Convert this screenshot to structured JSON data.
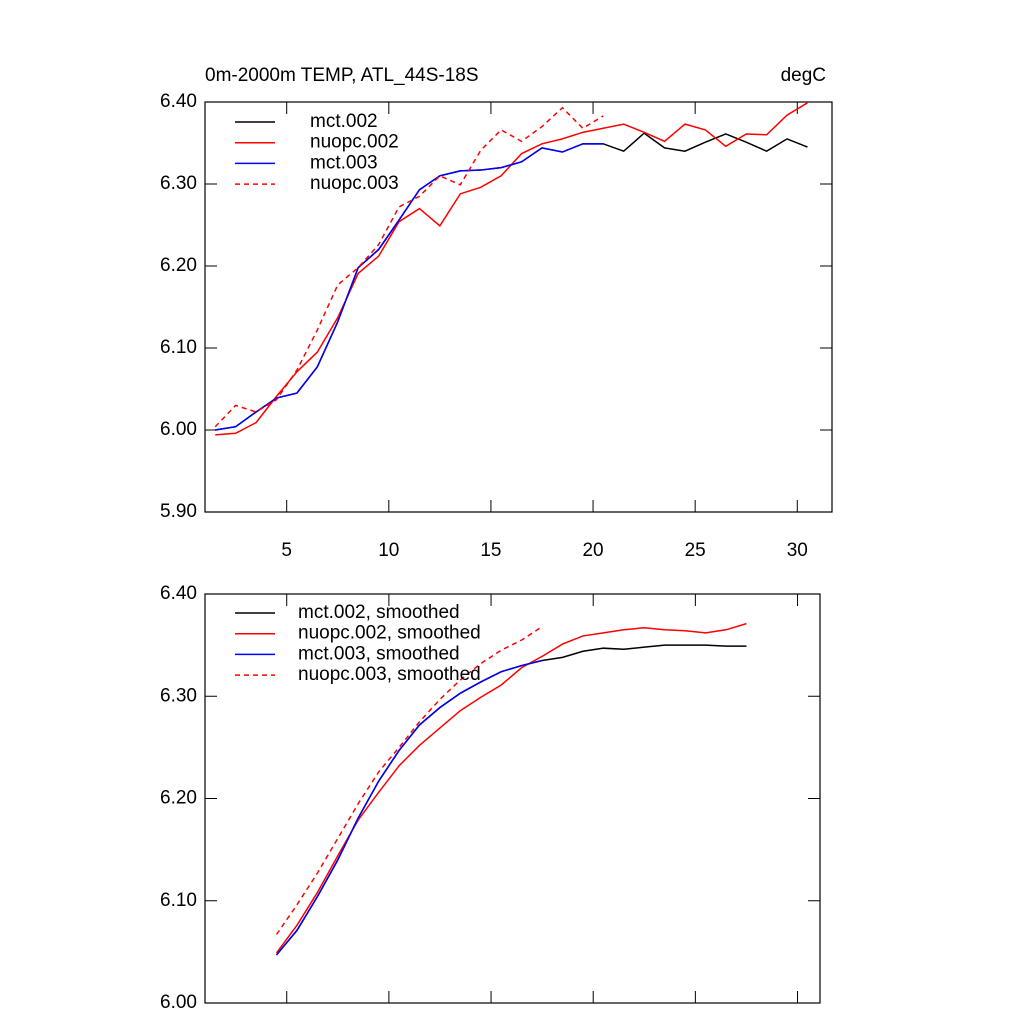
{
  "chart_data": [
    {
      "type": "line",
      "title": "0m-2000m TEMP, ATL_44S-18S",
      "units": "degC",
      "x": [
        1.5,
        2.5,
        3.5,
        4.5,
        5.5,
        6.5,
        7.5,
        8.5,
        9.5,
        10.5,
        11.5,
        12.5,
        13.5,
        14.5,
        15.5,
        16.5,
        17.5,
        18.5,
        19.5,
        20.5,
        21.5,
        22.5,
        23.5,
        24.5,
        25.5,
        26.5,
        27.5,
        28.5,
        29.5,
        30.5
      ],
      "xlim": [
        1,
        31.7
      ],
      "ylim": [
        5.9,
        6.4
      ],
      "xticks": [
        5,
        10,
        15,
        20,
        25,
        30
      ],
      "yticks": [
        {
          "value": 5.9,
          "label": "5.90"
        },
        {
          "value": 6.0,
          "label": "6.00"
        },
        {
          "value": 6.1,
          "label": "6.10"
        },
        {
          "value": 6.2,
          "label": "6.20"
        },
        {
          "value": 6.3,
          "label": "6.30"
        },
        {
          "value": 6.4,
          "label": "6.40"
        }
      ],
      "series": [
        {
          "name": "mct.002",
          "color": "#000000",
          "dash": false,
          "values": [
            6.0,
            6.004,
            6.022,
            6.039,
            6.045,
            6.077,
            6.132,
            6.198,
            6.22,
            6.256,
            6.293,
            6.31,
            6.316,
            6.317,
            6.32,
            6.327,
            6.344,
            6.339,
            6.349,
            6.349,
            6.34,
            6.362,
            6.344,
            6.34,
            6.351,
            6.361,
            6.351,
            6.34,
            6.355,
            6.345
          ]
        },
        {
          "name": "nuopc.002",
          "color": "#ff0000",
          "dash": false,
          "values": [
            5.994,
            5.996,
            6.009,
            6.041,
            6.071,
            6.095,
            6.137,
            6.191,
            6.212,
            6.254,
            6.27,
            6.249,
            6.288,
            6.296,
            6.31,
            6.337,
            6.349,
            6.355,
            6.363,
            6.368,
            6.373,
            6.363,
            6.352,
            6.373,
            6.366,
            6.346,
            6.361,
            6.36,
            6.384,
            6.399
          ]
        },
        {
          "name": "mct.003",
          "color": "#0000ff",
          "dash": false,
          "values": [
            6.0,
            6.004,
            6.022,
            6.039,
            6.045,
            6.077,
            6.132,
            6.198,
            6.22,
            6.256,
            6.293,
            6.31,
            6.316,
            6.317,
            6.32,
            6.327,
            6.344,
            6.339,
            6.349,
            6.349,
            null,
            null,
            null,
            null,
            null,
            null,
            null,
            null,
            null,
            null
          ]
        },
        {
          "name": "nuopc.003",
          "color": "#ff0000",
          "dash": true,
          "values": [
            6.004,
            6.03,
            6.022,
            6.037,
            6.073,
            6.122,
            6.177,
            6.198,
            6.226,
            6.272,
            6.285,
            6.31,
            6.299,
            6.341,
            6.366,
            6.352,
            6.37,
            6.393,
            6.368,
            6.383,
            null,
            null,
            null,
            null,
            null,
            null,
            null,
            null,
            null,
            null
          ]
        }
      ]
    },
    {
      "type": "line",
      "x": [
        4.5,
        5.5,
        6.5,
        7.5,
        8.5,
        9.5,
        10.5,
        11.5,
        12.5,
        13.5,
        14.5,
        15.5,
        16.5,
        17.5,
        18.5,
        19.5,
        20.5,
        21.5,
        22.5,
        23.5,
        24.5,
        25.5,
        26.5,
        27.5
      ],
      "xlim": [
        1,
        31.1
      ],
      "ylim": [
        6.0,
        6.4
      ],
      "xticks": [
        5,
        10,
        15,
        20,
        25,
        30
      ],
      "yticks": [
        {
          "value": 6.0,
          "label": "6.00"
        },
        {
          "value": 6.1,
          "label": "6.10"
        },
        {
          "value": 6.2,
          "label": "6.20"
        },
        {
          "value": 6.3,
          "label": "6.30"
        },
        {
          "value": 6.4,
          "label": "6.40"
        }
      ],
      "series": [
        {
          "name": "mct.002, smoothed",
          "color": "#000000",
          "dash": false,
          "values": [
            6.047,
            6.071,
            6.104,
            6.14,
            6.181,
            6.217,
            6.247,
            6.272,
            6.289,
            6.303,
            6.314,
            6.324,
            6.33,
            6.335,
            6.338,
            6.344,
            6.347,
            6.346,
            6.348,
            6.35,
            6.35,
            6.35,
            6.349,
            6.349
          ]
        },
        {
          "name": "nuopc.002, smoothed",
          "color": "#ff0000",
          "dash": false,
          "values": [
            6.049,
            6.076,
            6.108,
            6.144,
            6.179,
            6.206,
            6.232,
            6.252,
            6.269,
            6.286,
            6.299,
            6.311,
            6.328,
            6.339,
            6.351,
            6.359,
            6.362,
            6.365,
            6.367,
            6.365,
            6.364,
            6.362,
            6.365,
            6.371
          ]
        },
        {
          "name": "mct.003, smoothed",
          "color": "#0000ff",
          "dash": false,
          "values": [
            6.047,
            6.071,
            6.104,
            6.14,
            6.181,
            6.217,
            6.247,
            6.272,
            6.289,
            6.303,
            6.314,
            6.324,
            6.33,
            6.335,
            null,
            null,
            null,
            null,
            null,
            null,
            null,
            null,
            null,
            null
          ]
        },
        {
          "name": "nuopc.003, smoothed",
          "color": "#ff0000",
          "dash": true,
          "values": [
            6.067,
            6.096,
            6.127,
            6.161,
            6.195,
            6.226,
            6.25,
            6.275,
            6.297,
            6.316,
            6.332,
            6.345,
            6.355,
            6.368,
            null,
            null,
            null,
            null,
            null,
            null,
            null,
            null,
            null,
            null
          ]
        }
      ]
    }
  ]
}
